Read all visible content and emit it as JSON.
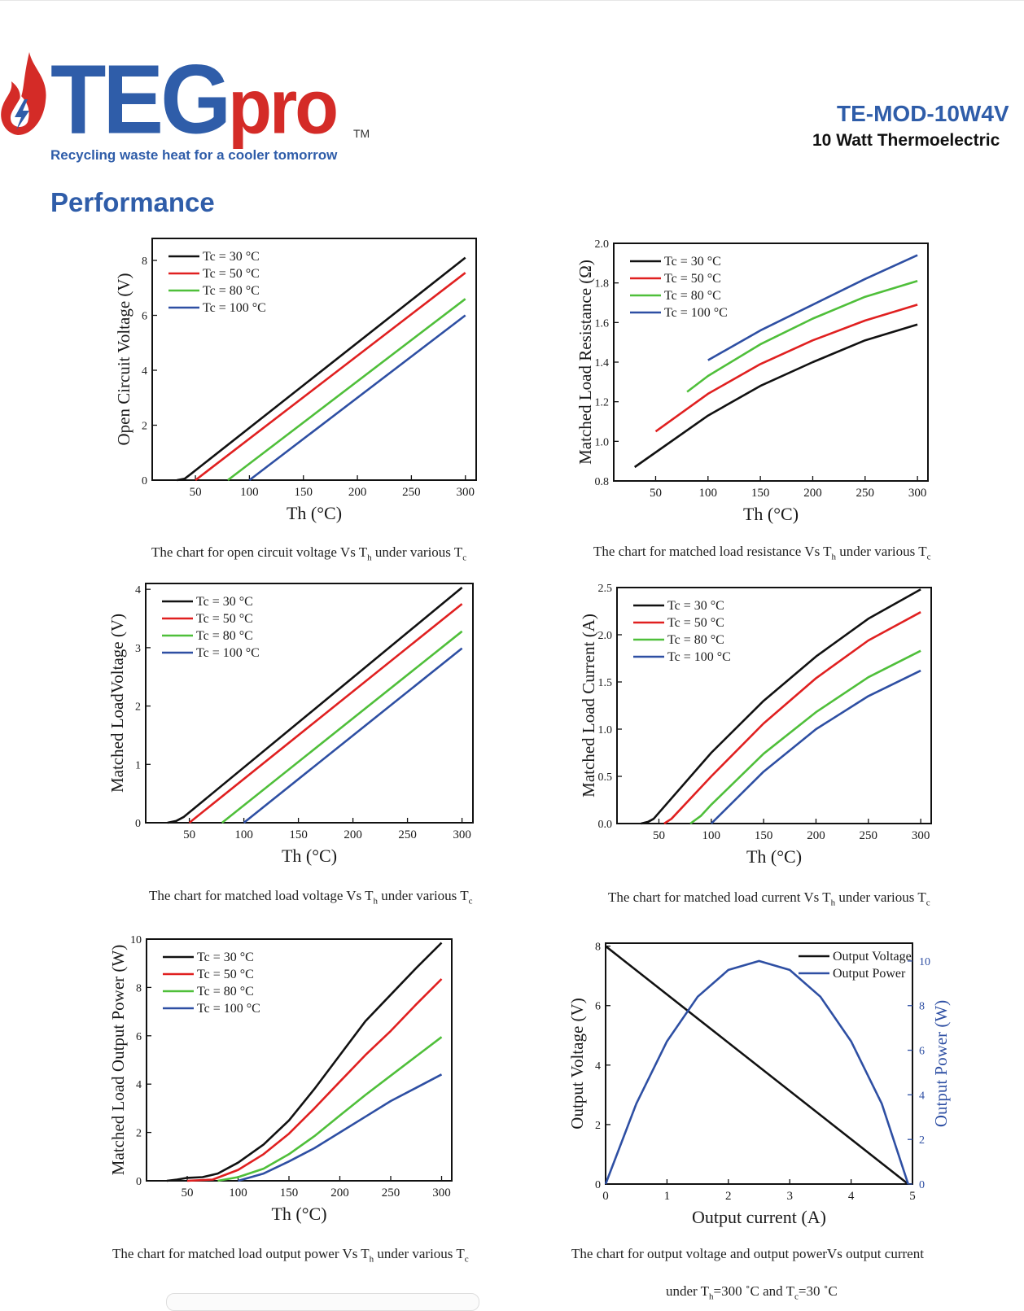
{
  "header": {
    "logo_main": "TEG",
    "logo_accent": "pro",
    "trademark": "TM",
    "tagline": "Recycling waste heat for a cooler tomorrow",
    "model": "TE-MOD-10W4V",
    "subtitle": "10 Watt Thermoelectric",
    "brand_blue": "#2f5da9",
    "brand_red": "#d42b27",
    "logo_icon": "flame-lightning-icon"
  },
  "section": {
    "title": "Performance"
  },
  "captions": {
    "c1": {
      "a": "The chart for open circuit voltage Vs T",
      "b": "h",
      "c": " under various T",
      "d": "c"
    },
    "c2": {
      "a": "The chart for matched load resistance Vs T",
      "b": "h",
      "c": " under various T",
      "d": "c"
    },
    "c3": {
      "a": "The chart for matched load voltage Vs T",
      "b": "h",
      "c": " under various T",
      "d": "c"
    },
    "c4": {
      "a": "The chart for matched load current  Vs T",
      "b": "h",
      "c": " under various T",
      "d": "c"
    },
    "c5": {
      "a": "The chart for matched load output power Vs T",
      "b": "h",
      "c": " under various T",
      "d": "c"
    },
    "c6": {
      "a": "The chart for output voltage and output powerVs output current"
    },
    "c6b": {
      "a": "under T",
      "b": "h",
      "c": "=300 ˚C  and T",
      "d": "c",
      "e": "=30 ˚C"
    }
  },
  "chart_data": [
    {
      "id": "ocv",
      "type": "line",
      "xlabel": "Th (°C)",
      "ylabel": "Open Circuit Voltage (V)",
      "xlim": [
        10,
        310
      ],
      "ylim": [
        0,
        8.8
      ],
      "xticks": [
        50,
        100,
        150,
        200,
        250,
        300
      ],
      "yticks": [
        0,
        2,
        4,
        6,
        8
      ],
      "legend_position": "top-left",
      "series": [
        {
          "name": "Tc = 30 °C",
          "color": "#111111",
          "points": [
            [
              33,
              0
            ],
            [
              40,
              0.05
            ],
            [
              45,
              0.2
            ],
            [
              300,
              8.1
            ]
          ]
        },
        {
          "name": "Tc = 50 °C",
          "color": "#e02020",
          "points": [
            [
              50,
              0
            ],
            [
              300,
              7.55
            ]
          ]
        },
        {
          "name": "Tc = 80 °C",
          "color": "#4fbf3a",
          "points": [
            [
              80,
              0
            ],
            [
              300,
              6.6
            ]
          ]
        },
        {
          "name": "Tc = 100 °C",
          "color": "#2e4fa3",
          "points": [
            [
              100,
              0
            ],
            [
              300,
              6.0
            ]
          ]
        }
      ]
    },
    {
      "id": "resistance",
      "type": "line",
      "xlabel": "Th (°C)",
      "ylabel": "Matched Load Resistance (Ω)",
      "xlim": [
        10,
        310
      ],
      "ylim": [
        0.8,
        2.0
      ],
      "xticks": [
        50,
        100,
        150,
        200,
        250,
        300
      ],
      "yticks": [
        0.8,
        1.0,
        1.2,
        1.4,
        1.6,
        1.8,
        2.0
      ],
      "ytick_decimals": 1,
      "legend_position": "top-left",
      "series": [
        {
          "name": "Tc = 30 °C",
          "color": "#111111",
          "points": [
            [
              30,
              0.87
            ],
            [
              100,
              1.13
            ],
            [
              150,
              1.28
            ],
            [
              200,
              1.4
            ],
            [
              250,
              1.51
            ],
            [
              300,
              1.59
            ]
          ]
        },
        {
          "name": "Tc = 50 °C",
          "color": "#e02020",
          "points": [
            [
              50,
              1.05
            ],
            [
              100,
              1.24
            ],
            [
              150,
              1.39
            ],
            [
              200,
              1.51
            ],
            [
              250,
              1.61
            ],
            [
              300,
              1.69
            ]
          ]
        },
        {
          "name": "Tc = 80 °C",
          "color": "#4fbf3a",
          "points": [
            [
              80,
              1.25
            ],
            [
              100,
              1.33
            ],
            [
              150,
              1.49
            ],
            [
              200,
              1.62
            ],
            [
              250,
              1.73
            ],
            [
              300,
              1.81
            ]
          ]
        },
        {
          "name": "Tc = 100 °C",
          "color": "#2e4fa3",
          "points": [
            [
              100,
              1.41
            ],
            [
              150,
              1.56
            ],
            [
              200,
              1.69
            ],
            [
              250,
              1.82
            ],
            [
              300,
              1.94
            ]
          ]
        }
      ]
    },
    {
      "id": "mlv",
      "type": "line",
      "xlabel": "Th (°C)",
      "ylabel": "Matched LoadVoltage (V)",
      "xlim": [
        10,
        310
      ],
      "ylim": [
        0,
        4.1
      ],
      "xticks": [
        50,
        100,
        150,
        200,
        250,
        300
      ],
      "yticks": [
        0,
        1,
        2,
        3,
        4
      ],
      "legend_position": "top-left",
      "series": [
        {
          "name": "Tc = 30 °C",
          "color": "#111111",
          "points": [
            [
              30,
              0
            ],
            [
              38,
              0.03
            ],
            [
              45,
              0.1
            ],
            [
              300,
              4.03
            ]
          ]
        },
        {
          "name": "Tc = 50 °C",
          "color": "#e02020",
          "points": [
            [
              50,
              0
            ],
            [
              300,
              3.75
            ]
          ]
        },
        {
          "name": "Tc = 80 °C",
          "color": "#4fbf3a",
          "points": [
            [
              80,
              0
            ],
            [
              300,
              3.28
            ]
          ]
        },
        {
          "name": "Tc = 100 °C",
          "color": "#2e4fa3",
          "points": [
            [
              100,
              0
            ],
            [
              300,
              2.99
            ]
          ]
        }
      ]
    },
    {
      "id": "mlc",
      "type": "line",
      "xlabel": "Th (°C)",
      "ylabel": "Matched Load Current (A)",
      "xlim": [
        10,
        310
      ],
      "ylim": [
        0,
        2.5
      ],
      "xticks": [
        50,
        100,
        150,
        200,
        250,
        300
      ],
      "yticks": [
        0,
        0.5,
        1.0,
        1.5,
        2.0,
        2.5
      ],
      "ytick_decimals": 1,
      "legend_position": "top-left",
      "series": [
        {
          "name": "Tc = 30 °C",
          "color": "#111111",
          "points": [
            [
              33,
              0
            ],
            [
              40,
              0.02
            ],
            [
              45,
              0.05
            ],
            [
              100,
              0.75
            ],
            [
              150,
              1.3
            ],
            [
              200,
              1.77
            ],
            [
              250,
              2.17
            ],
            [
              300,
              2.48
            ]
          ]
        },
        {
          "name": "Tc = 50 °C",
          "color": "#e02020",
          "points": [
            [
              55,
              0
            ],
            [
              62,
              0.05
            ],
            [
              100,
              0.5
            ],
            [
              150,
              1.06
            ],
            [
              200,
              1.54
            ],
            [
              250,
              1.94
            ],
            [
              300,
              2.24
            ]
          ]
        },
        {
          "name": "Tc = 80 °C",
          "color": "#4fbf3a",
          "points": [
            [
              80,
              0
            ],
            [
              90,
              0.08
            ],
            [
              100,
              0.2
            ],
            [
              150,
              0.74
            ],
            [
              200,
              1.18
            ],
            [
              250,
              1.55
            ],
            [
              300,
              1.83
            ]
          ]
        },
        {
          "name": "Tc = 100 °C",
          "color": "#2e4fa3",
          "points": [
            [
              100,
              0
            ],
            [
              150,
              0.55
            ],
            [
              200,
              1.0
            ],
            [
              250,
              1.35
            ],
            [
              300,
              1.62
            ]
          ]
        }
      ]
    },
    {
      "id": "power",
      "type": "line",
      "xlabel": "Th (°C)",
      "ylabel": "Matched Load Output Power (W)",
      "xlim": [
        10,
        310
      ],
      "ylim": [
        0,
        10
      ],
      "xticks": [
        50,
        100,
        150,
        200,
        250,
        300
      ],
      "yticks": [
        0,
        2,
        4,
        6,
        8,
        10
      ],
      "legend_position": "top-left",
      "series": [
        {
          "name": "Tc = 30 °C",
          "color": "#111111",
          "points": [
            [
              30,
              0
            ],
            [
              40,
              0.05
            ],
            [
              50,
              0.12
            ],
            [
              65,
              0.15
            ],
            [
              80,
              0.3
            ],
            [
              100,
              0.75
            ],
            [
              125,
              1.5
            ],
            [
              150,
              2.5
            ],
            [
              175,
              3.8
            ],
            [
              200,
              5.2
            ],
            [
              225,
              6.6
            ],
            [
              250,
              7.7
            ],
            [
              275,
              8.8
            ],
            [
              300,
              9.85
            ]
          ]
        },
        {
          "name": "Tc = 50 °C",
          "color": "#e02020",
          "points": [
            [
              50,
              0
            ],
            [
              75,
              0.05
            ],
            [
              100,
              0.45
            ],
            [
              125,
              1.1
            ],
            [
              150,
              1.95
            ],
            [
              175,
              3.0
            ],
            [
              200,
              4.1
            ],
            [
              225,
              5.2
            ],
            [
              250,
              6.2
            ],
            [
              275,
              7.3
            ],
            [
              300,
              8.35
            ]
          ]
        },
        {
          "name": "Tc = 80 °C",
          "color": "#4fbf3a",
          "points": [
            [
              80,
              0
            ],
            [
              100,
              0.15
            ],
            [
              125,
              0.5
            ],
            [
              150,
              1.1
            ],
            [
              175,
              1.85
            ],
            [
              200,
              2.7
            ],
            [
              225,
              3.55
            ],
            [
              250,
              4.35
            ],
            [
              275,
              5.15
            ],
            [
              300,
              5.95
            ]
          ]
        },
        {
          "name": "Tc = 100 °C",
          "color": "#2e4fa3",
          "points": [
            [
              100,
              0
            ],
            [
              125,
              0.3
            ],
            [
              150,
              0.8
            ],
            [
              175,
              1.35
            ],
            [
              200,
              2.0
            ],
            [
              225,
              2.65
            ],
            [
              250,
              3.3
            ],
            [
              275,
              3.85
            ],
            [
              300,
              4.4
            ]
          ]
        }
      ]
    },
    {
      "id": "iv",
      "type": "line",
      "xlabel": "Output current (A)",
      "ylabel": "Output Voltage (V)",
      "y2label": "Output Power (W)",
      "xlim": [
        0,
        5
      ],
      "ylim": [
        0,
        8.1
      ],
      "y2lim": [
        0,
        10.8
      ],
      "xticks": [
        0,
        1,
        2,
        3,
        4,
        5
      ],
      "yticks": [
        0,
        2,
        4,
        6,
        8
      ],
      "y2ticks": [
        0,
        2,
        4,
        6,
        8,
        10
      ],
      "legend_position": "top-right",
      "series": [
        {
          "name": "Output Voltage",
          "color": "#111111",
          "axis": "left",
          "points": [
            [
              0,
              8.0
            ],
            [
              4.93,
              0
            ]
          ]
        },
        {
          "name": "Output Power",
          "color": "#2e4fa3",
          "axis": "right",
          "points": [
            [
              0,
              0
            ],
            [
              0.5,
              3.6
            ],
            [
              1.0,
              6.4
            ],
            [
              1.5,
              8.4
            ],
            [
              2.0,
              9.6
            ],
            [
              2.5,
              10.0
            ],
            [
              3.0,
              9.6
            ],
            [
              3.5,
              8.4
            ],
            [
              4.0,
              6.4
            ],
            [
              4.5,
              3.6
            ],
            [
              4.93,
              0
            ]
          ]
        }
      ]
    }
  ]
}
